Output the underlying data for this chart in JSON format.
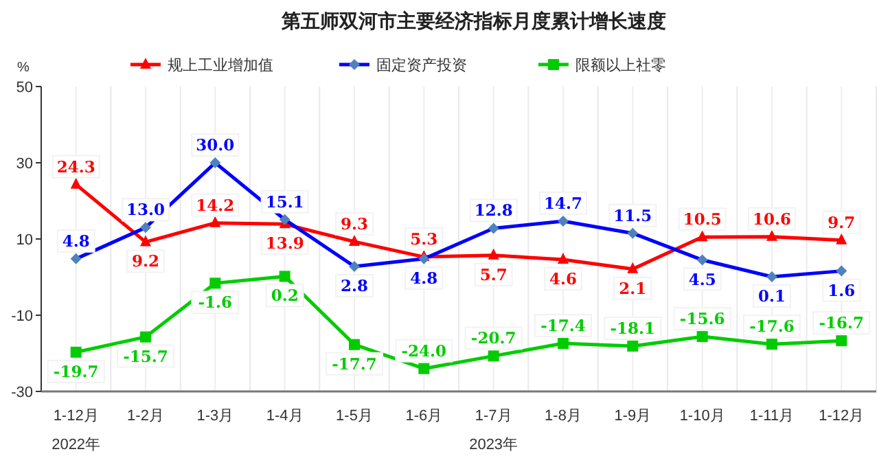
{
  "chart_data": {
    "type": "line",
    "title": "第五师双河市主要经济指标月度累计增长速度",
    "ylabel": "%",
    "categories": [
      "1-12月",
      "1-2月",
      "1-3月",
      "1-4月",
      "1-5月",
      "1-6月",
      "1-7月",
      "1-8月",
      "1-9月",
      "1-10月",
      "1-11月",
      "1-12月"
    ],
    "series": [
      {
        "name": "规上工业增加值",
        "color": "#ff0000",
        "marker": "triangle",
        "values": [
          24.3,
          9.2,
          14.2,
          13.9,
          9.3,
          5.3,
          5.7,
          4.6,
          2.1,
          10.5,
          10.6,
          9.7
        ],
        "value_labels": [
          "24.3",
          "9.2",
          "14.2",
          "13.9",
          "9.3",
          "5.3",
          "5.7",
          "4.6",
          "2.1",
          "10.5",
          "10.6",
          "9.7"
        ]
      },
      {
        "name": "固定资产投资",
        "color": "#0000ff",
        "marker": "diamond",
        "values": [
          4.8,
          13.0,
          30.0,
          15.1,
          2.8,
          4.8,
          12.8,
          14.7,
          11.5,
          4.5,
          0.1,
          1.6
        ],
        "value_labels": [
          "4.8",
          "13.0",
          "30.0",
          "15.1",
          "2.8",
          "4.8",
          "12.8",
          "14.7",
          "11.5",
          "4.5",
          "0.1",
          "1.6"
        ]
      },
      {
        "name": "限额以上社零",
        "color": "#00cc00",
        "marker": "square",
        "values": [
          -19.7,
          -15.7,
          -1.6,
          0.2,
          -17.7,
          -24.0,
          -20.7,
          -17.4,
          -18.1,
          -15.6,
          -17.6,
          -16.7
        ],
        "value_labels": [
          "-19.7",
          "-15.7",
          "-1.6",
          "0.2",
          "-17.7",
          "-24.0",
          "-20.7",
          "-17.4",
          "-18.1",
          "-15.6",
          "-17.6",
          "-16.7"
        ]
      }
    ],
    "ylim": [
      -30,
      50
    ],
    "yticks": [
      -30,
      -10,
      10,
      30,
      50
    ],
    "grid": "x",
    "legend": "top",
    "annotations": [
      "2022年",
      "2023年"
    ]
  }
}
